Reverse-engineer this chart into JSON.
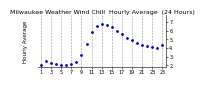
{
  "title": "Milwaukee Weather Wind Chill  Hourly Average  (24 Hours)",
  "hours": [
    1,
    2,
    3,
    4,
    5,
    6,
    7,
    8,
    9,
    10,
    11,
    12,
    13,
    14,
    15,
    16,
    17,
    18,
    19,
    20,
    21,
    22,
    23,
    24,
    25
  ],
  "wind_chill": [
    2.1,
    2.5,
    2.3,
    2.2,
    2.1,
    2.1,
    2.2,
    2.4,
    3.2,
    4.5,
    5.8,
    6.5,
    6.8,
    6.7,
    6.4,
    6.0,
    5.6,
    5.2,
    4.9,
    4.6,
    4.4,
    4.2,
    4.1,
    4.0,
    4.3
  ],
  "dot_color": "#0000cc",
  "grid_color": "#999999",
  "background_color": "#ffffff",
  "ylim": [
    1.8,
    7.8
  ],
  "xlim": [
    0.5,
    25.8
  ],
  "title_fontsize": 4.5,
  "tick_fontsize": 3.5,
  "ytick_values": [
    2,
    3,
    4,
    5,
    6,
    7
  ],
  "ytick_labels": [
    "2.",
    "3.",
    "4.",
    "5.",
    "6.",
    "7."
  ],
  "xtick_values": [
    1,
    3,
    5,
    7,
    9,
    11,
    13,
    15,
    17,
    19,
    21,
    23,
    25
  ],
  "xtick_labels": [
    "1",
    "3",
    "5",
    "7",
    "9",
    "11",
    "13",
    "15",
    "17",
    "19",
    "21",
    "23",
    "25"
  ],
  "vgrid_positions": [
    1,
    3,
    5,
    7,
    9,
    11,
    13,
    15,
    17,
    19,
    21,
    23,
    25
  ],
  "left_label": "Hourly Average"
}
